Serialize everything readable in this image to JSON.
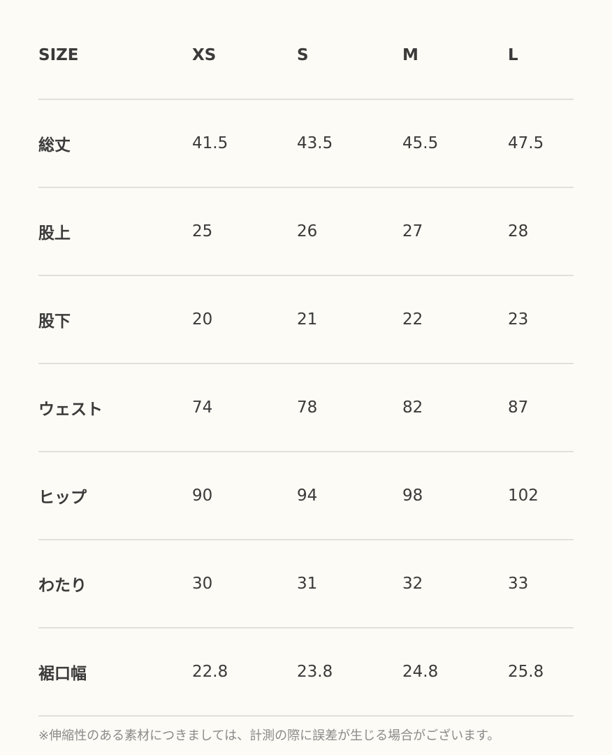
{
  "table": {
    "headers": [
      "SIZE",
      "XS",
      "S",
      "M",
      "L"
    ],
    "rows": [
      {
        "label": "総丈",
        "values": [
          "41.5",
          "43.5",
          "45.5",
          "47.5"
        ]
      },
      {
        "label": "股上",
        "values": [
          "25",
          "26",
          "27",
          "28"
        ]
      },
      {
        "label": "股下",
        "values": [
          "20",
          "21",
          "22",
          "23"
        ]
      },
      {
        "label": "ウェスト",
        "values": [
          "74",
          "78",
          "82",
          "87"
        ]
      },
      {
        "label": "ヒップ",
        "values": [
          "90",
          "94",
          "98",
          "102"
        ]
      },
      {
        "label": "わたり",
        "values": [
          "30",
          "31",
          "32",
          "33"
        ]
      },
      {
        "label": "裾口幅",
        "values": [
          "22.8",
          "23.8",
          "24.8",
          "25.8"
        ]
      }
    ]
  },
  "note": "※伸縮性のある素材につきましては、計測の際に誤差が生じる場合がございます。"
}
